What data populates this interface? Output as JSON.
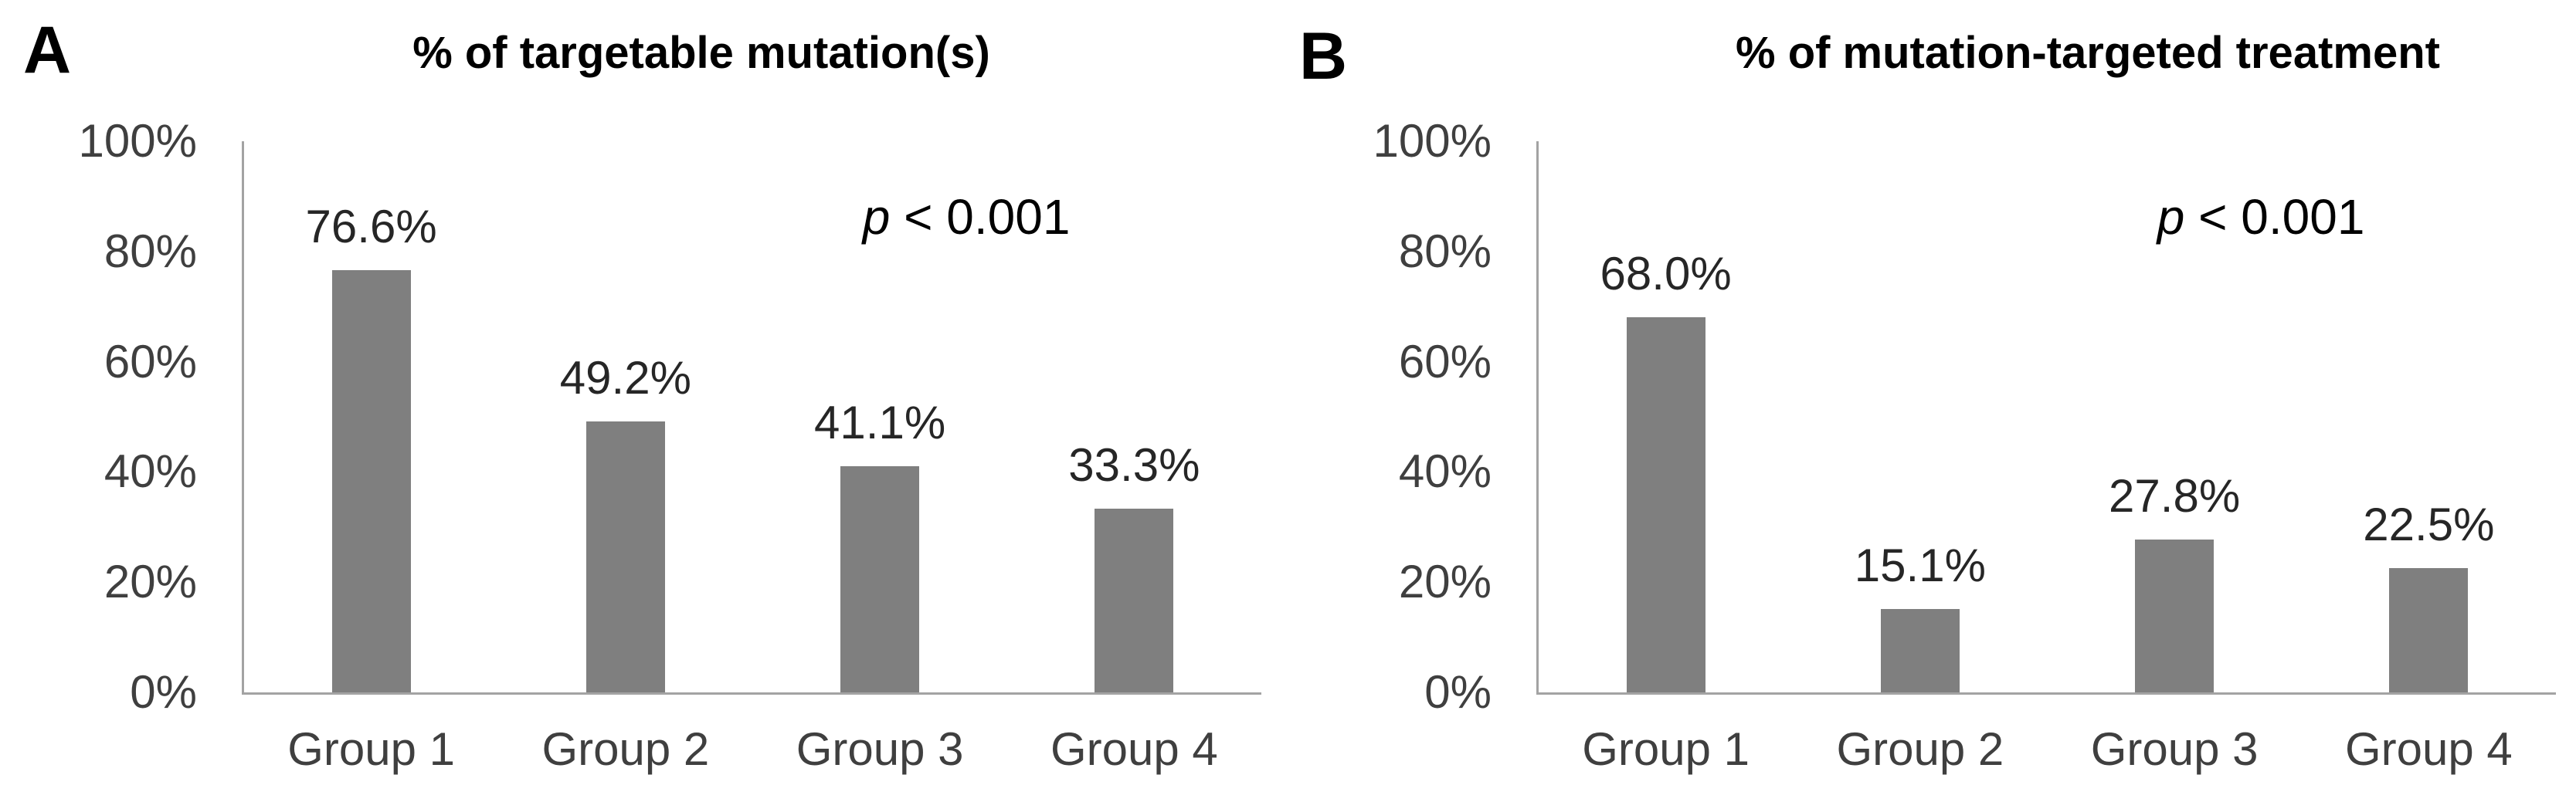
{
  "figure": {
    "background": "#ffffff",
    "bar_color": "#7f7f7f",
    "axis_color": "#a3a3a3",
    "tick_text_color": "#3f3f3f",
    "value_text_color": "#262626",
    "title_text_color": "#000000"
  },
  "panels": [
    {
      "letter": "A",
      "title": "% of targetable mutation(s)",
      "annotation": {
        "symbol": "p",
        "rest": " < 0.001"
      }
    },
    {
      "letter": "B",
      "title": "% of mutation-targeted treatment",
      "annotation": {
        "symbol": "p",
        "rest": " < 0.001"
      }
    }
  ],
  "chart_data": [
    {
      "type": "bar",
      "panel": "A",
      "title": "% of targetable mutation(s)",
      "categories": [
        "Group 1",
        "Group 2",
        "Group 3",
        "Group 4"
      ],
      "values": [
        76.6,
        49.2,
        41.1,
        33.3
      ],
      "value_labels": [
        "76.6%",
        "49.2%",
        "41.1%",
        "33.3%"
      ],
      "xlabel": "",
      "ylabel": "",
      "ylim": [
        0,
        100
      ],
      "yticks": [
        "0%",
        "20%",
        "40%",
        "60%",
        "80%",
        "100%"
      ],
      "annotation": "p < 0.001",
      "grid": false,
      "legend": false,
      "bar_color": "#7f7f7f"
    },
    {
      "type": "bar",
      "panel": "B",
      "title": "% of mutation-targeted treatment",
      "categories": [
        "Group 1",
        "Group 2",
        "Group 3",
        "Group 4"
      ],
      "values": [
        68.0,
        15.1,
        27.8,
        22.5
      ],
      "value_labels": [
        "68.0%",
        "15.1%",
        "27.8%",
        "22.5%"
      ],
      "xlabel": "",
      "ylabel": "",
      "ylim": [
        0,
        100
      ],
      "yticks": [
        "0%",
        "20%",
        "40%",
        "60%",
        "80%",
        "100%"
      ],
      "annotation": "p < 0.001",
      "grid": false,
      "legend": false,
      "bar_color": "#7f7f7f"
    }
  ]
}
